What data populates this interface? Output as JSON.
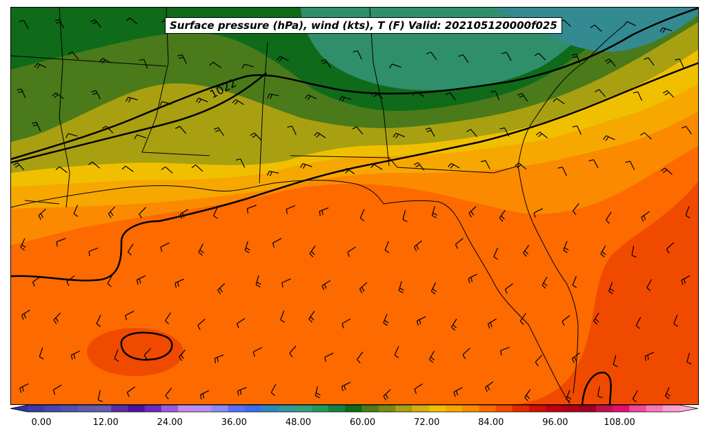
{
  "title": "Surface pressure (hPa), wind (kts), T (F) Valid: 202105120000f025",
  "isobar_label": "1022",
  "colorbar": {
    "ticks": [
      "0.00",
      "12.00",
      "24.00",
      "36.00",
      "48.00",
      "60.00",
      "72.00",
      "84.00",
      "96.00",
      "108.00"
    ],
    "colors": [
      "#3a3aa8",
      "#4646ae",
      "#5050b0",
      "#5e5aa8",
      "#6a5ab0",
      "#5a2ea8",
      "#4a12a0",
      "#6a2ac0",
      "#9a5ae0",
      "#c08af0",
      "#b490f8",
      "#8a8af8",
      "#5a6ef8",
      "#3a6ef0",
      "#2f86c0",
      "#2f98a0",
      "#33a07a",
      "#1e9a5a",
      "#168040",
      "#0f6a1a",
      "#4a7a1a",
      "#7a8a10",
      "#a8a010",
      "#d4b010",
      "#f0c000",
      "#f7a800",
      "#fb8a00",
      "#fd6a00",
      "#f04a00",
      "#e02a00",
      "#d01000",
      "#c00010",
      "#b00018",
      "#a00024",
      "#c0104a",
      "#e01070",
      "#f04898",
      "#f878b8",
      "#f8a0d0"
    ]
  },
  "colors": {
    "dark_green": "#0f6a1a",
    "green": "#4a7a1a",
    "olive": "#a8a010",
    "yellow": "#f0c000",
    "light_orange": "#f7a800",
    "orange": "#fb8a00",
    "deep_orange": "#fd6a00",
    "red_orange": "#f04a00",
    "teal": "#2f8f6a",
    "blue_teal": "#338a90"
  }
}
